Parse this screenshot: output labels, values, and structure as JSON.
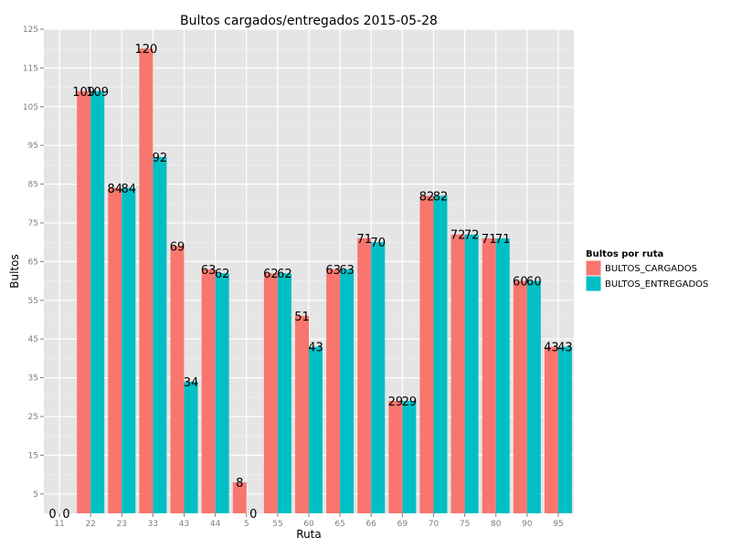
{
  "chart_data": {
    "type": "bar",
    "title": "Bultos cargados/entregados 2015-05-28",
    "xlabel": "Ruta",
    "ylabel": "Bultos",
    "categories": [
      "11",
      "22",
      "23",
      "33",
      "43",
      "44",
      "5",
      "55",
      "60",
      "65",
      "66",
      "69",
      "70",
      "75",
      "80",
      "90",
      "95"
    ],
    "series": [
      {
        "name": "BULTOS_CARGADOS",
        "color": "#F8766D",
        "values": [
          0,
          109,
          84,
          120,
          69,
          63,
          8,
          62,
          51,
          63,
          71,
          29,
          82,
          72,
          71,
          60,
          43
        ]
      },
      {
        "name": "BULTOS_ENTREGADOS",
        "color": "#00BFC4",
        "values": [
          0,
          109,
          84,
          92,
          34,
          62,
          0,
          62,
          43,
          63,
          70,
          29,
          82,
          72,
          71,
          60,
          43
        ]
      }
    ],
    "yticks": [
      5,
      15,
      25,
      35,
      45,
      55,
      65,
      75,
      85,
      95,
      105,
      115,
      125
    ],
    "ylim": [
      0,
      125
    ],
    "grid": true,
    "legend": {
      "title": "Bultos por ruta",
      "position": "right"
    }
  }
}
